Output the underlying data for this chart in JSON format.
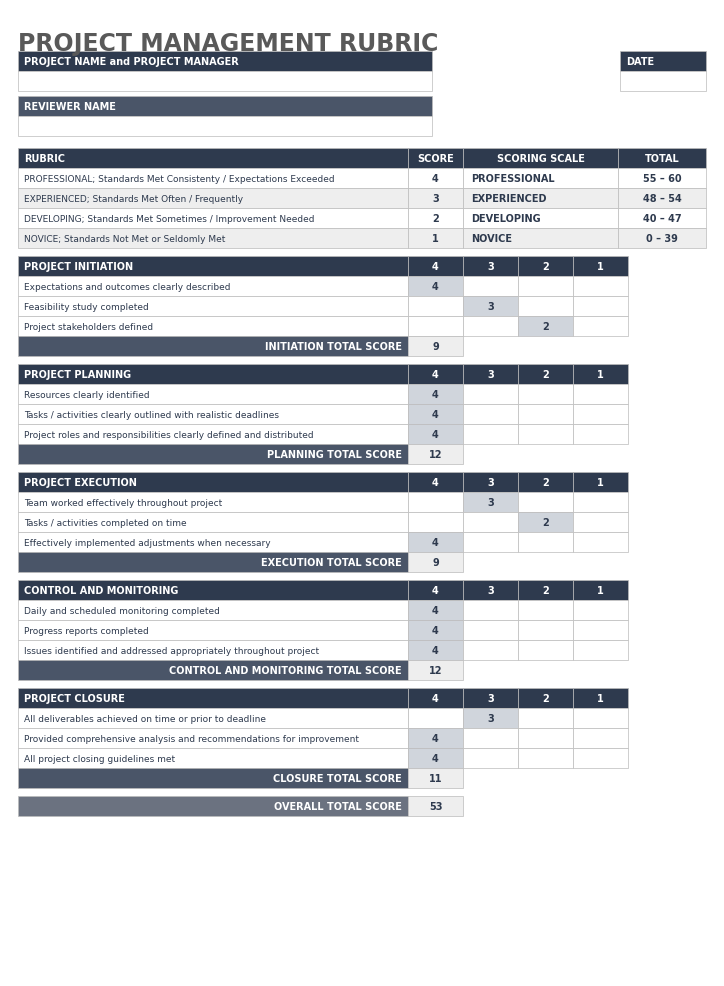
{
  "title": "PROJECT MANAGEMENT RUBRIC",
  "title_color": "#595959",
  "dark_header_color": "#2E3A4E",
  "medium_header_color": "#4A5568",
  "overall_header_color": "#6B7280",
  "light_gray": "#EEEEEE",
  "score_cell_color": "#D0D5DC",
  "white": "#FFFFFF",
  "header_text_color": "#FFFFFF",
  "body_text_color": "#2E3A4E",
  "border_color": "#BBBBBB",
  "info_fields": [
    "PROJECT NAME and PROJECT MANAGER",
    "REVIEWER NAME"
  ],
  "date_label": "DATE",
  "rubric_header": [
    "RUBRIC",
    "SCORE",
    "SCORING SCALE",
    "TOTAL"
  ],
  "rubric_rows": [
    {
      "rubric": "PROFESSIONAL; Standards Met Consistenty / Expectations Exceeded",
      "score": "4",
      "scale": "PROFESSIONAL",
      "total": "55 – 60"
    },
    {
      "rubric": "EXPERIENCED; Standards Met Often / Frequently",
      "score": "3",
      "scale": "EXPERIENCED",
      "total": "48 – 54"
    },
    {
      "rubric": "DEVELOPING; Standards Met Sometimes / Improvement Needed",
      "score": "2",
      "scale": "DEVELOPING",
      "total": "40 – 47"
    },
    {
      "rubric": "NOVICE; Standards Not Met or Seldomly Met",
      "score": "1",
      "scale": "NOVICE",
      "total": "0 – 39"
    }
  ],
  "sections": [
    {
      "title": "PROJECT INITIATION",
      "items": [
        {
          "text": "Expectations and outcomes clearly described",
          "scores": [
            4,
            null,
            null,
            null
          ]
        },
        {
          "text": "Feasibility study completed",
          "scores": [
            null,
            3,
            null,
            null
          ]
        },
        {
          "text": "Project stakeholders defined",
          "scores": [
            null,
            null,
            2,
            null
          ]
        }
      ],
      "total_label": "INITIATION TOTAL SCORE",
      "total": "9"
    },
    {
      "title": "PROJECT PLANNING",
      "items": [
        {
          "text": "Resources clearly identified",
          "scores": [
            4,
            null,
            null,
            null
          ]
        },
        {
          "text": "Tasks / activities clearly outlined with realistic deadlines",
          "scores": [
            4,
            null,
            null,
            null
          ]
        },
        {
          "text": "Project roles and responsibilities clearly defined and distributed",
          "scores": [
            4,
            null,
            null,
            null
          ]
        }
      ],
      "total_label": "PLANNING TOTAL SCORE",
      "total": "12"
    },
    {
      "title": "PROJECT EXECUTION",
      "items": [
        {
          "text": "Team worked effectively throughout project",
          "scores": [
            null,
            3,
            null,
            null
          ]
        },
        {
          "text": "Tasks / activities completed on time",
          "scores": [
            null,
            null,
            2,
            null
          ]
        },
        {
          "text": "Effectively implemented adjustments when necessary",
          "scores": [
            4,
            null,
            null,
            null
          ]
        }
      ],
      "total_label": "EXECUTION TOTAL SCORE",
      "total": "9"
    },
    {
      "title": "CONTROL AND MONITORING",
      "items": [
        {
          "text": "Daily and scheduled monitoring completed",
          "scores": [
            4,
            null,
            null,
            null
          ]
        },
        {
          "text": "Progress reports completed",
          "scores": [
            4,
            null,
            null,
            null
          ]
        },
        {
          "text": "Issues identified and addressed appropriately throughout project",
          "scores": [
            4,
            null,
            null,
            null
          ]
        }
      ],
      "total_label": "CONTROL AND MONITORING TOTAL SCORE",
      "total": "12"
    },
    {
      "title": "PROJECT CLOSURE",
      "items": [
        {
          "text": "All deliverables achieved on time or prior to deadline",
          "scores": [
            null,
            3,
            null,
            null
          ]
        },
        {
          "text": "Provided comprehensive analysis and recommendations for improvement",
          "scores": [
            4,
            null,
            null,
            null
          ]
        },
        {
          "text": "All project closing guidelines met",
          "scores": [
            4,
            null,
            null,
            null
          ]
        }
      ],
      "total_label": "CLOSURE TOTAL SCORE",
      "total": "11"
    }
  ],
  "overall_label": "OVERALL TOTAL SCORE",
  "overall_total": "53"
}
